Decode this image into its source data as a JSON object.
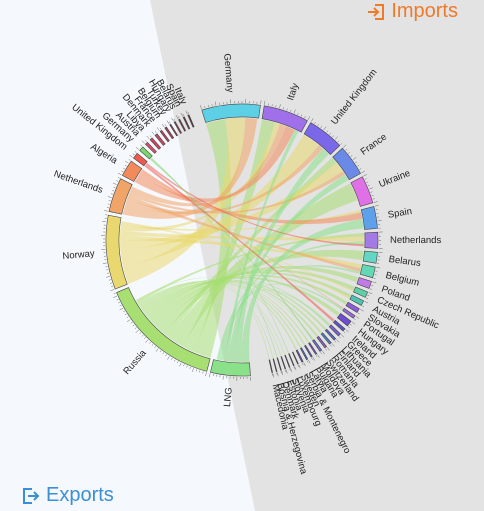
{
  "labels": {
    "imports": "Imports",
    "exports": "Exports"
  },
  "icons": {
    "imports": "sign-in-icon",
    "exports": "sign-out-icon"
  },
  "colors": {
    "imports_accent": "#ef7a2a",
    "exports_accent": "#3a8fd6",
    "imports_bg": "#e3e3e3",
    "exports_bg": "#f5f8fc"
  },
  "chart_data": {
    "type": "chord",
    "title": "",
    "groups": {
      "exports": [
        {
          "name": "LNG",
          "value": 60,
          "color": "#8be08a"
        },
        {
          "name": "Russia",
          "value": 185,
          "color": "#a8df72"
        },
        {
          "name": "Norway",
          "value": 112,
          "color": "#e9d870"
        },
        {
          "name": "Netherlands",
          "value": 52,
          "color": "#f0a468"
        },
        {
          "name": "Algeria",
          "value": 25,
          "color": "#f28a5c"
        },
        {
          "name": "United Kingdom",
          "value": 9,
          "color": "#ef5a50"
        },
        {
          "name": "Germany",
          "value": 7,
          "color": "#7bd46b"
        },
        {
          "name": "Austria",
          "value": 4,
          "color": "#e24b6a"
        },
        {
          "name": "Libya",
          "value": 4,
          "color": "#d4455a"
        },
        {
          "name": "Denmark",
          "value": 4,
          "color": "#c54a5f"
        },
        {
          "name": "France",
          "value": 3,
          "color": "#b9435b"
        },
        {
          "name": "Belgium",
          "value": 3,
          "color": "#a84157"
        },
        {
          "name": "Turkey",
          "value": 2,
          "color": "#9a3e56"
        },
        {
          "name": "Hungary",
          "value": 2,
          "color": "#8a3a52"
        },
        {
          "name": "Belarus",
          "value": 2,
          "color": "#7d3750"
        },
        {
          "name": "Spain",
          "value": 2,
          "color": "#70344c"
        },
        {
          "name": "Italy",
          "value": 2,
          "color": "#663148"
        }
      ],
      "imports": [
        {
          "name": "Germany",
          "value": 80,
          "color": "#5ed0e6"
        },
        {
          "name": "Italy",
          "value": 62,
          "color": "#a070ea"
        },
        {
          "name": "United Kingdom",
          "value": 50,
          "color": "#7a68e8"
        },
        {
          "name": "France",
          "value": 42,
          "color": "#6b8ae8"
        },
        {
          "name": "Ukraine",
          "value": 38,
          "color": "#e070e6"
        },
        {
          "name": "Spain",
          "value": 30,
          "color": "#5ea0ea"
        },
        {
          "name": "Netherlands",
          "value": 22,
          "color": "#a47ae6"
        },
        {
          "name": "Belarus",
          "value": 15,
          "color": "#64d6c4"
        },
        {
          "name": "Belgium",
          "value": 15,
          "color": "#62d8b4"
        },
        {
          "name": "Poland",
          "value": 10,
          "color": "#c27ae8"
        },
        {
          "name": "Czech Republic",
          "value": 8,
          "color": "#5cd0a6"
        },
        {
          "name": "Austria",
          "value": 7,
          "color": "#4cc2b0"
        },
        {
          "name": "Slovakia",
          "value": 6,
          "color": "#8b5cd6"
        },
        {
          "name": "Portugal",
          "value": 4,
          "color": "#9a68e0"
        },
        {
          "name": "Hungary",
          "value": 8,
          "color": "#6e4ed0"
        },
        {
          "name": "Ireland",
          "value": 4,
          "color": "#5e52c8"
        },
        {
          "name": "Greece",
          "value": 4,
          "color": "#7a5ed2"
        },
        {
          "name": "Lithuania",
          "value": 3,
          "color": "#5868c6"
        },
        {
          "name": "Finland",
          "value": 3,
          "color": "#4f7ec8"
        },
        {
          "name": "Romania",
          "value": 3,
          "color": "#8c5cc2"
        },
        {
          "name": "Switzerland",
          "value": 3,
          "color": "#6a6ccf"
        },
        {
          "name": "Moldova",
          "value": 2,
          "color": "#7b4fc0"
        },
        {
          "name": "Bulgaria",
          "value": 2,
          "color": "#5f58c2"
        },
        {
          "name": "Latvia",
          "value": 2,
          "color": "#4d6ab8"
        },
        {
          "name": "Serbia & Montenegro",
          "value": 2,
          "color": "#6d4bb4"
        },
        {
          "name": "Sweden",
          "value": 1,
          "color": "#505ab0"
        },
        {
          "name": "Luxembourg",
          "value": 1,
          "color": "#5a50a8"
        },
        {
          "name": "Slovenia",
          "value": 1,
          "color": "#5a5aa0"
        },
        {
          "name": "Estonia",
          "value": 1,
          "color": "#4e5a9c"
        },
        {
          "name": "Denmark",
          "value": 1,
          "color": "#4a4a90"
        },
        {
          "name": "Bosnia & Herzegovina",
          "value": 1,
          "color": "#444488"
        },
        {
          "name": "Macedonia",
          "value": 1,
          "color": "#3e3e80"
        }
      ]
    },
    "flows": [
      {
        "from": "Russia",
        "to": "Germany",
        "value": 30
      },
      {
        "from": "Russia",
        "to": "Italy",
        "value": 20
      },
      {
        "from": "Russia",
        "to": "Ukraine",
        "value": 28
      },
      {
        "from": "Russia",
        "to": "France",
        "value": 10
      },
      {
        "from": "Russia",
        "to": "Belarus",
        "value": 14
      },
      {
        "from": "Russia",
        "to": "Poland",
        "value": 8
      },
      {
        "from": "Russia",
        "to": "Czech Republic",
        "value": 6
      },
      {
        "from": "Russia",
        "to": "Slovakia",
        "value": 5
      },
      {
        "from": "Russia",
        "to": "Austria",
        "value": 5
      },
      {
        "from": "Russia",
        "to": "Hungary",
        "value": 6
      },
      {
        "from": "Russia",
        "to": "Finland",
        "value": 3
      },
      {
        "from": "Russia",
        "to": "Lithuania",
        "value": 3
      },
      {
        "from": "Russia",
        "to": "Romania",
        "value": 3
      },
      {
        "from": "Russia",
        "to": "Bulgaria",
        "value": 2
      },
      {
        "from": "Russia",
        "to": "Greece",
        "value": 2
      },
      {
        "from": "Russia",
        "to": "Serbia & Montenegro",
        "value": 2
      },
      {
        "from": "Russia",
        "to": "Moldova",
        "value": 2
      },
      {
        "from": "Russia",
        "to": "Latvia",
        "value": 2
      },
      {
        "from": "Russia",
        "to": "Estonia",
        "value": 1
      },
      {
        "from": "Russia",
        "to": "Slovenia",
        "value": 1
      },
      {
        "from": "Russia",
        "to": "Bosnia & Herzegovina",
        "value": 1
      },
      {
        "from": "Russia",
        "to": "Macedonia",
        "value": 1
      },
      {
        "from": "Russia",
        "to": "Netherlands",
        "value": 5
      },
      {
        "from": "Russia",
        "to": "Switzerland",
        "value": 1
      },
      {
        "from": "Norway",
        "to": "Germany",
        "value": 30
      },
      {
        "from": "Norway",
        "to": "United Kingdom",
        "value": 28
      },
      {
        "from": "Norway",
        "to": "France",
        "value": 16
      },
      {
        "from": "Norway",
        "to": "Belgium",
        "value": 8
      },
      {
        "from": "Norway",
        "to": "Netherlands",
        "value": 8
      },
      {
        "from": "Norway",
        "to": "Italy",
        "value": 8
      },
      {
        "from": "Norway",
        "to": "Spain",
        "value": 4
      },
      {
        "from": "Norway",
        "to": "Austria",
        "value": 2
      },
      {
        "from": "Norway",
        "to": "Czech Republic",
        "value": 2
      },
      {
        "from": "Netherlands",
        "to": "Germany",
        "value": 18
      },
      {
        "from": "Netherlands",
        "to": "United Kingdom",
        "value": 8
      },
      {
        "from": "Netherlands",
        "to": "Belgium",
        "value": 7
      },
      {
        "from": "Netherlands",
        "to": "France",
        "value": 6
      },
      {
        "from": "Netherlands",
        "to": "Italy",
        "value": 10
      },
      {
        "from": "Algeria",
        "to": "Italy",
        "value": 14
      },
      {
        "from": "Algeria",
        "to": "Spain",
        "value": 10
      },
      {
        "from": "Algeria",
        "to": "Portugal",
        "value": 1
      },
      {
        "from": "LNG",
        "to": "Spain",
        "value": 14
      },
      {
        "from": "LNG",
        "to": "United Kingdom",
        "value": 12
      },
      {
        "from": "LNG",
        "to": "France",
        "value": 10
      },
      {
        "from": "LNG",
        "to": "Italy",
        "value": 6
      },
      {
        "from": "LNG",
        "to": "Belgium",
        "value": 4
      },
      {
        "from": "LNG",
        "to": "Portugal",
        "value": 3
      },
      {
        "from": "LNG",
        "to": "Greece",
        "value": 2
      },
      {
        "from": "LNG",
        "to": "Netherlands",
        "value": 4
      },
      {
        "from": "United Kingdom",
        "to": "Ireland",
        "value": 4
      },
      {
        "from": "United Kingdom",
        "to": "Netherlands",
        "value": 3
      },
      {
        "from": "Germany",
        "to": "Switzerland",
        "value": 2
      },
      {
        "from": "Germany",
        "to": "Luxembourg",
        "value": 1
      },
      {
        "from": "Germany",
        "to": "Denmark",
        "value": 1
      }
    ]
  }
}
